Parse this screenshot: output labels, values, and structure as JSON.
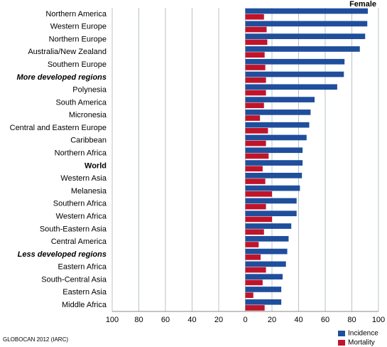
{
  "chart_data": {
    "type": "bar",
    "orientation": "horizontal",
    "title": "Female",
    "source": "GLOBOCAN 2012 (IARC)",
    "categories": [
      "Northern America",
      "Western Europe",
      "Northern Europe",
      "Australia/New Zealand",
      "Southern Europe",
      "More developed regions",
      "Polynesia",
      "South America",
      "Micronesia",
      "Central and Eastern Europe",
      "Caribbean",
      "Northern Africa",
      "World",
      "Western Asia",
      "Melanesia",
      "Southern Africa",
      "Western Africa",
      "South-Eastern Asia",
      "Central America",
      "Less developed regions",
      "Eastern Africa",
      "South-Central Asia",
      "Eastern Asia",
      "Middle Africa"
    ],
    "category_styles": [
      "normal",
      "normal",
      "normal",
      "normal",
      "normal",
      "bold-italic",
      "normal",
      "normal",
      "normal",
      "normal",
      "normal",
      "normal",
      "bold",
      "normal",
      "normal",
      "normal",
      "normal",
      "normal",
      "normal",
      "bold-italic",
      "normal",
      "normal",
      "normal",
      "normal"
    ],
    "series": [
      {
        "name": "Incidence",
        "color": "#1f4e9c",
        "values": [
          92,
          91.6,
          90,
          86,
          74.5,
          74,
          69,
          52,
          49,
          48,
          46,
          43,
          43,
          42.5,
          41,
          38.5,
          38.5,
          34.5,
          32.5,
          31.5,
          30.5,
          28,
          27,
          27
        ]
      },
      {
        "name": "Mortality",
        "color": "#c0142a",
        "values": [
          14,
          16,
          16.5,
          14.5,
          15,
          15.5,
          15.5,
          14,
          11,
          17,
          15.5,
          17.5,
          13,
          15,
          20,
          15.5,
          20,
          14,
          10,
          11.5,
          15.5,
          13,
          6,
          14.5
        ]
      }
    ],
    "xlim": [
      -100,
      100
    ],
    "xticks": [
      {
        "value": -100,
        "label": "100"
      },
      {
        "value": -80,
        "label": "80"
      },
      {
        "value": -60,
        "label": "60"
      },
      {
        "value": -40,
        "label": "40"
      },
      {
        "value": -20,
        "label": "20"
      },
      0,
      20,
      40,
      60,
      80,
      100
    ],
    "grid": true,
    "legend": "bottom-right"
  }
}
